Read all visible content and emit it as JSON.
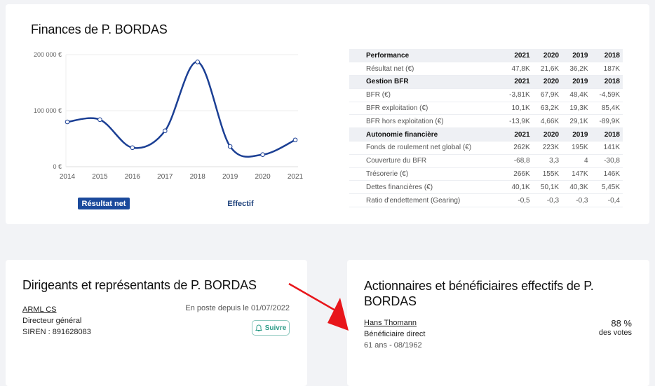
{
  "finances": {
    "title": "Finances de P. BORDAS",
    "tabs": [
      {
        "label": "Résultat net",
        "active": true
      },
      {
        "label": "Effectif",
        "active": false
      }
    ],
    "table": {
      "sections": [
        {
          "header": "Performance",
          "years": [
            "2021",
            "2020",
            "2019",
            "2018"
          ],
          "rows": [
            {
              "label": "Résultat net (€)",
              "values": [
                "47,8K",
                "21,6K",
                "36,2K",
                "187K"
              ]
            }
          ]
        },
        {
          "header": "Gestion BFR",
          "years": [
            "2021",
            "2020",
            "2019",
            "2018"
          ],
          "rows": [
            {
              "label": "BFR (€)",
              "values": [
                "-3,81K",
                "67,9K",
                "48,4K",
                "-4,59K"
              ]
            },
            {
              "label": "BFR exploitation (€)",
              "values": [
                "10,1K",
                "63,2K",
                "19,3K",
                "85,4K"
              ]
            },
            {
              "label": "BFR hors exploitation (€)",
              "values": [
                "-13,9K",
                "4,66K",
                "29,1K",
                "-89,9K"
              ]
            }
          ]
        },
        {
          "header": "Autonomie financière",
          "years": [
            "2021",
            "2020",
            "2019",
            "2018"
          ],
          "rows": [
            {
              "label": "Fonds de roulement net global (€)",
              "values": [
                "262K",
                "223K",
                "195K",
                "141K"
              ]
            },
            {
              "label": "Couverture du BFR",
              "values": [
                "-68,8",
                "3,3",
                "4",
                "-30,8"
              ]
            },
            {
              "label": "Trésorerie (€)",
              "values": [
                "266K",
                "155K",
                "147K",
                "146K"
              ]
            },
            {
              "label": "Dettes financières (€)",
              "values": [
                "40,1K",
                "50,1K",
                "40,3K",
                "5,45K"
              ]
            },
            {
              "label": "Ratio d'endettement (Gearing)",
              "values": [
                "-0,5",
                "-0,3",
                "-0,3",
                "-0,4"
              ]
            }
          ]
        }
      ]
    }
  },
  "chart_data": {
    "type": "line",
    "categories": [
      "2014",
      "2015",
      "2016",
      "2017",
      "2018",
      "2019",
      "2020",
      "2021"
    ],
    "values": [
      80000,
      84000,
      34000,
      64000,
      187000,
      36200,
      21600,
      47800
    ],
    "yticks": [
      "0 €",
      "100 000 €",
      "200 000 €"
    ],
    "ylim": [
      0,
      200000
    ],
    "grid": true,
    "color": "#1b3f94"
  },
  "dirigeants": {
    "title": "Dirigeants et représentants de P. BORDAS",
    "name": "ARML CS",
    "role": "Directeur général",
    "siren": "SIREN : 891628083",
    "since": "En poste depuis le 01/07/2022",
    "follow_label": "Suivre"
  },
  "actionnaires": {
    "title": "Actionnaires et bénéficiaires effectifs de P. BORDAS",
    "name": "Hans Thomann",
    "type": "Bénéficiaire direct",
    "age": "61 ans - 08/1962",
    "percent": "88 %",
    "percent_label": "des votes"
  },
  "colors": {
    "accent": "#1b4a9c",
    "follow": "#2e9c88",
    "arrow": "#e8161b"
  }
}
